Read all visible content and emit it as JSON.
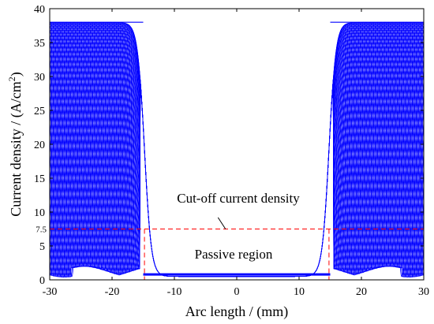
{
  "chart_data": {
    "type": "line",
    "xlabel": "Arc length / (mm)",
    "ylabel_main": "Current density / (A/cm",
    "ylabel_sup": "2",
    "ylabel_tail": ")",
    "xlim": [
      -30,
      30
    ],
    "ylim": [
      0,
      40
    ],
    "xticks": [
      -30,
      -20,
      -10,
      0,
      10,
      20,
      30
    ],
    "xtick_labels": [
      "-30",
      "-20",
      "-10",
      "0",
      "10",
      "20",
      "30"
    ],
    "yticks": [
      0,
      5,
      10,
      15,
      20,
      25,
      30,
      35,
      40
    ],
    "ytick_labels": [
      "0",
      "5",
      "10",
      "15",
      "20",
      "25",
      "30",
      "35",
      "40"
    ],
    "extra_ytick": 7.5,
    "extra_ytick_label": "7.5",
    "series_color": "#0000ff",
    "guide_color": "#ff0000",
    "plateau_value": 38,
    "passive_floor": 0.5,
    "edge_x": 15,
    "cutoff": {
      "value": 7.5,
      "label": "Cut-off current density",
      "x_crossings": [
        -14.8,
        14.8
      ]
    },
    "region_label": "Passive region",
    "grid": false
  }
}
